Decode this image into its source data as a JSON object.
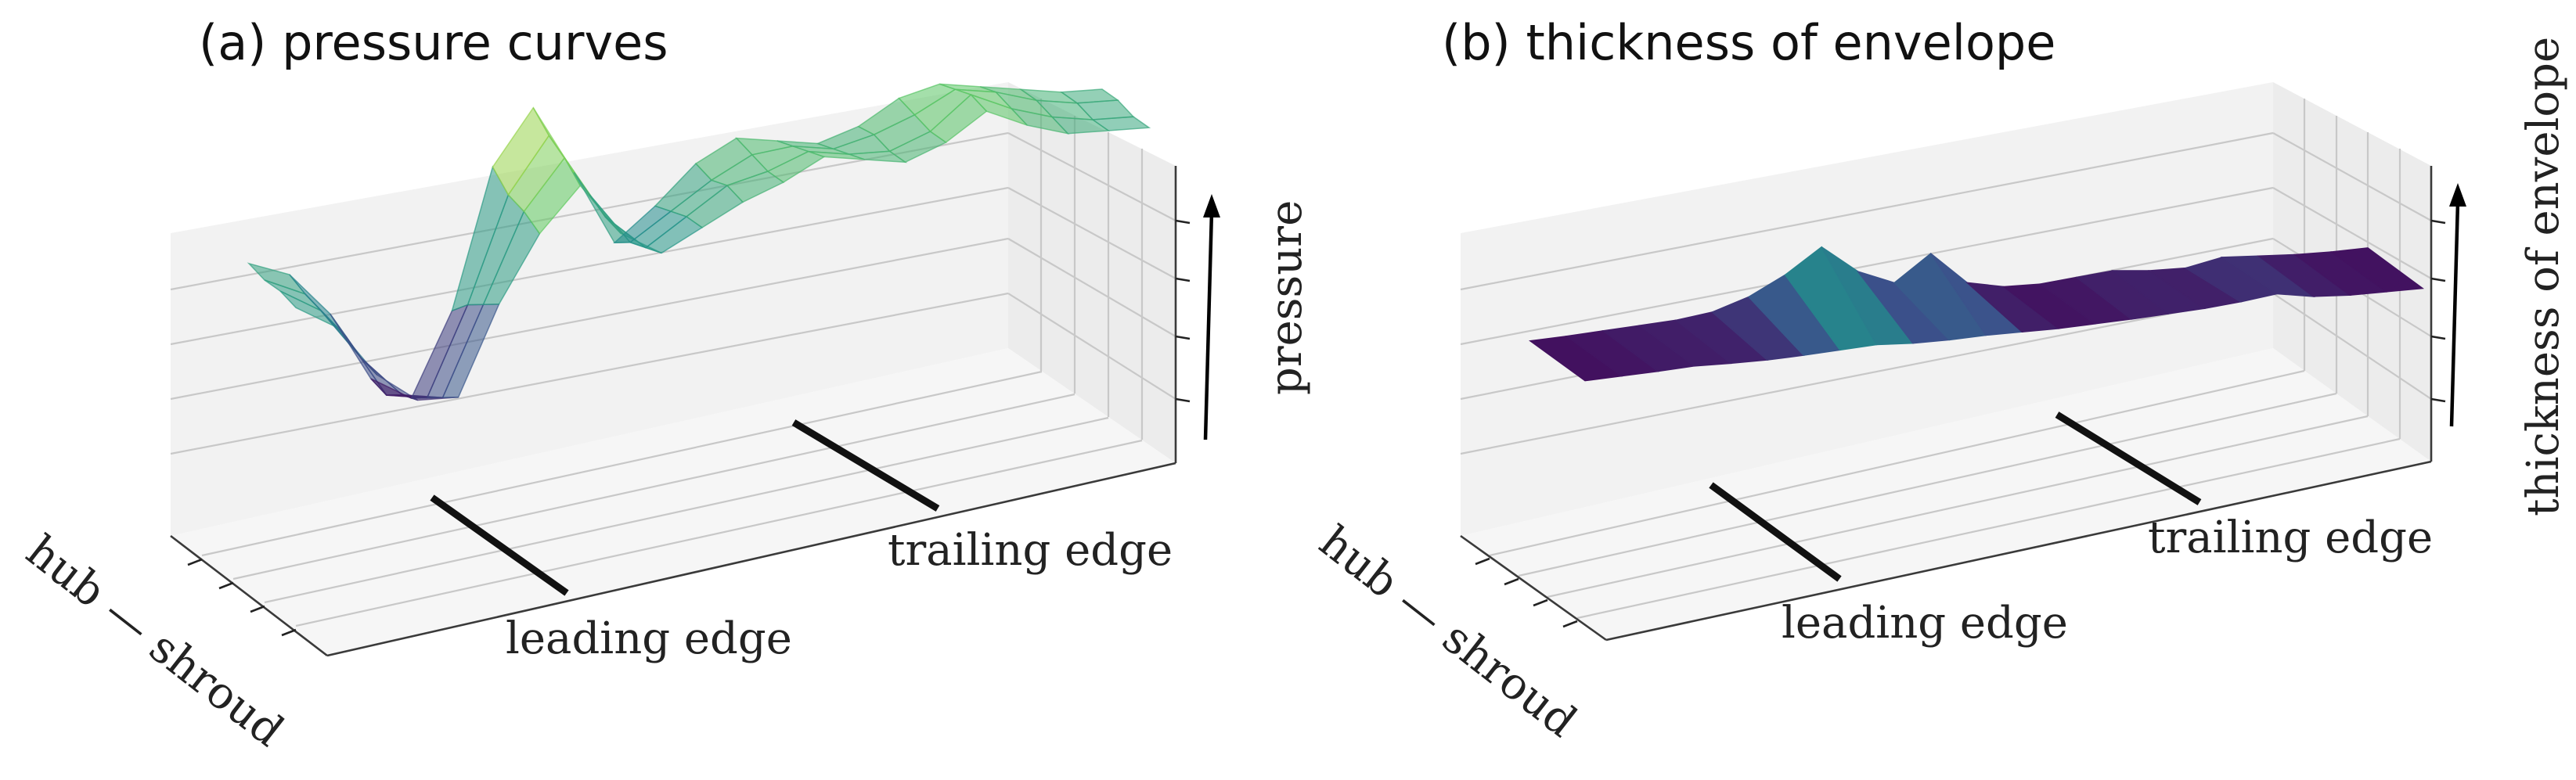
{
  "chart_data": [
    {
      "panel": "a",
      "type": "surface",
      "title": "(a) pressure curves",
      "xlabel": "hub — shroud",
      "zlabel": "pressure",
      "annotations": [
        "leading edge",
        "trailing edge"
      ],
      "colormap": [
        "#440154",
        "#3b528b",
        "#21918c",
        "#5ec962",
        "#fde725"
      ],
      "surface_alpha": 0.55,
      "grid": true,
      "axis_ticklabels": false,
      "series": [
        {
          "values": [
            0.62,
            0.55,
            0.38,
            0.12,
            0.02,
            0.3,
            0.78,
            0.96,
            0.7,
            0.42,
            0.52,
            0.64,
            0.7,
            0.66,
            0.62,
            0.65,
            0.72,
            0.74,
            0.7,
            0.66,
            0.62,
            0.6
          ]
        },
        {
          "values": [
            0.6,
            0.52,
            0.34,
            0.1,
            0.06,
            0.36,
            0.72,
            0.9,
            0.66,
            0.46,
            0.54,
            0.62,
            0.68,
            0.68,
            0.64,
            0.66,
            0.7,
            0.76,
            0.72,
            0.66,
            0.62,
            0.6
          ]
        },
        {
          "values": [
            0.6,
            0.5,
            0.3,
            0.14,
            0.1,
            0.4,
            0.7,
            0.86,
            0.62,
            0.48,
            0.56,
            0.64,
            0.66,
            0.7,
            0.66,
            0.64,
            0.68,
            0.78,
            0.7,
            0.64,
            0.6,
            0.58
          ]
        },
        {
          "values": [
            0.58,
            0.48,
            0.28,
            0.16,
            0.14,
            0.44,
            0.66,
            0.8,
            0.6,
            0.5,
            0.56,
            0.62,
            0.66,
            0.72,
            0.68,
            0.64,
            0.68,
            0.76,
            0.68,
            0.62,
            0.6,
            0.58
          ]
        }
      ]
    },
    {
      "panel": "b",
      "type": "surface",
      "title": "(b) thickness of envelope",
      "xlabel": "hub — shroud",
      "zlabel": "thickness of envelope",
      "annotations": [
        "leading edge",
        "trailing edge"
      ],
      "colormap": [
        "#440154",
        "#3b528b",
        "#21918c",
        "#5ec962",
        "#fde725"
      ],
      "grid": true,
      "axis_ticklabels": false,
      "series": [
        {
          "values": [
            0.05,
            0.06,
            0.08,
            0.1,
            0.12,
            0.18,
            0.35,
            0.62,
            0.98,
            0.55,
            0.32,
            0.7,
            0.2,
            0.08,
            0.06,
            0.1,
            0.14,
            0.08,
            0.06,
            0.16,
            0.12,
            0.08,
            0.06,
            0.06
          ]
        },
        {
          "values": [
            0.04,
            0.05,
            0.06,
            0.08,
            0.06,
            0.05,
            0.06,
            0.08,
            0.1,
            0.06,
            0.05,
            0.06,
            0.05,
            0.04,
            0.05,
            0.06,
            0.08,
            0.1,
            0.14,
            0.2,
            0.1,
            0.06,
            0.05,
            0.04
          ]
        }
      ]
    }
  ]
}
